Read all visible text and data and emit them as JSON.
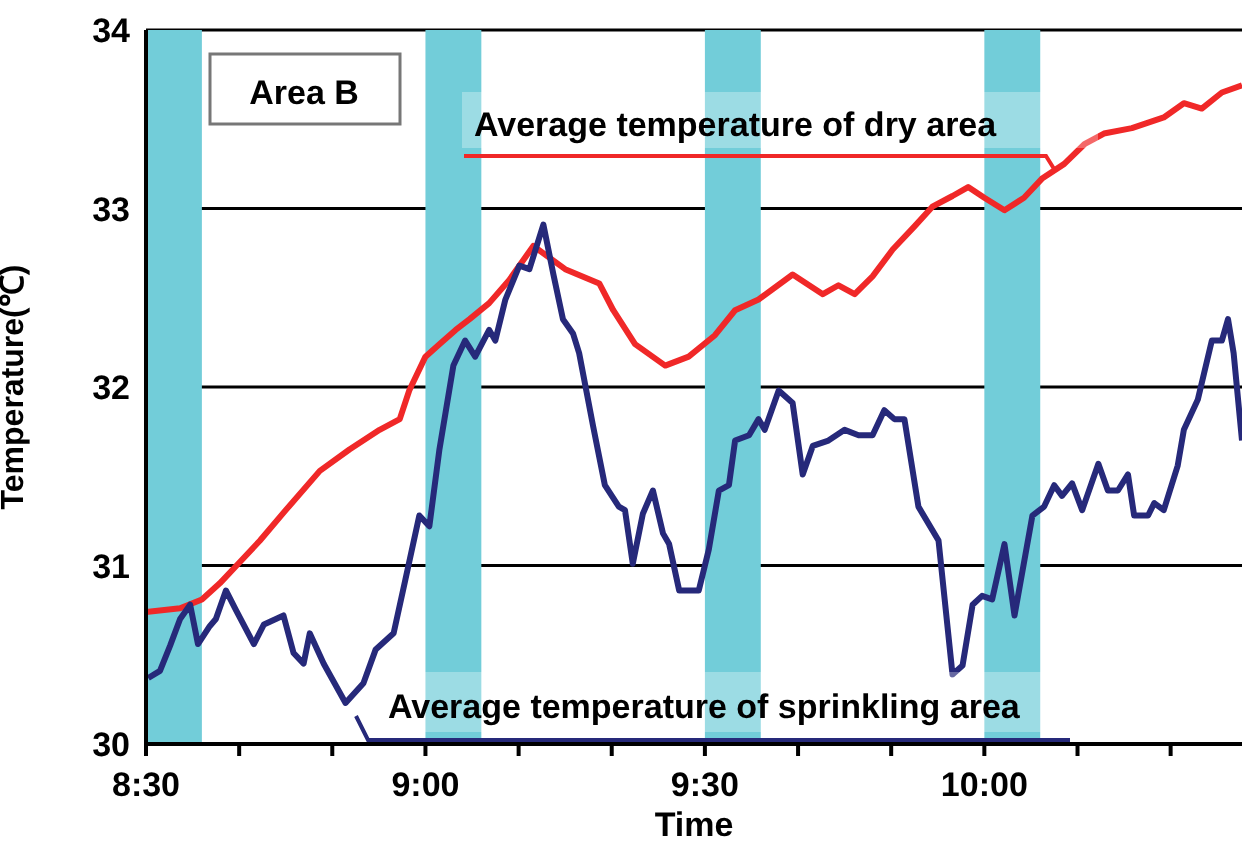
{
  "chart_data": {
    "type": "line",
    "title": "Area B",
    "xlabel": "Time",
    "ylabel": "Temperature(℃)",
    "xlim": [
      8.5,
      10.461
    ],
    "xticks": [
      {
        "value": 8.5,
        "label": "8:30"
      },
      {
        "value": 8.6667,
        "label": null
      },
      {
        "value": 8.8333,
        "label": null
      },
      {
        "value": 9,
        "label": "9:00"
      },
      {
        "value": 9.1667,
        "label": null
      },
      {
        "value": 9.3333,
        "label": null
      },
      {
        "value": 9.5,
        "label": "9:30"
      },
      {
        "value": 9.6667,
        "label": null
      },
      {
        "value": 9.8333,
        "label": null
      },
      {
        "value": 10,
        "label": "10:00"
      },
      {
        "value": 10.1667,
        "label": null
      },
      {
        "value": 10.3333,
        "label": null
      }
    ],
    "ylim": [
      30,
      34
    ],
    "yticks": [
      30,
      31,
      32,
      33,
      34
    ],
    "grid": "y",
    "marker": "none",
    "line_style": "solid",
    "bands": [
      {
        "axis": "x",
        "from": 8.5,
        "to": 8.6,
        "color": "#72cdd9"
      },
      {
        "axis": "x",
        "from": 9.0,
        "to": 9.1,
        "color": "#72cdd9"
      },
      {
        "axis": "x",
        "from": 9.5,
        "to": 9.6,
        "color": "#72cdd9"
      },
      {
        "axis": "x",
        "from": 10.0,
        "to": 10.1,
        "color": "#72cdd9"
      }
    ],
    "series": [
      {
        "name": "Average temperature of dry area",
        "color": "#f02828",
        "x": [
          8.5,
          8.561,
          8.6,
          8.632,
          8.668,
          8.704,
          8.75,
          8.811,
          8.864,
          8.918,
          8.954,
          8.971,
          9.0,
          9.025,
          9.054,
          9.079,
          9.114,
          9.15,
          9.193,
          9.25,
          9.311,
          9.336,
          9.375,
          9.429,
          9.471,
          9.518,
          9.554,
          9.596,
          9.657,
          9.711,
          9.739,
          9.768,
          9.8,
          9.836,
          9.875,
          9.907,
          9.943,
          9.971,
          10.0,
          10.036,
          10.071,
          10.104,
          10.143,
          10.179,
          10.214,
          10.264,
          10.321,
          10.357,
          10.389,
          10.425,
          10.461
        ],
        "values": [
          30.74,
          30.76,
          30.81,
          30.9,
          31.02,
          31.14,
          31.31,
          31.53,
          31.65,
          31.76,
          31.82,
          31.98,
          32.17,
          32.24,
          32.32,
          32.38,
          32.47,
          32.6,
          32.79,
          32.66,
          32.58,
          32.43,
          32.24,
          32.12,
          32.17,
          32.29,
          32.43,
          32.49,
          32.63,
          32.52,
          32.57,
          32.52,
          32.62,
          32.77,
          32.9,
          33.01,
          33.07,
          33.12,
          33.06,
          32.99,
          33.06,
          33.17,
          33.25,
          33.36,
          33.42,
          33.45,
          33.51,
          33.59,
          33.56,
          33.65,
          33.69
        ]
      },
      {
        "name": "Average temperature of sprinkling area",
        "color": "#26297a",
        "x": [
          8.504,
          8.525,
          8.543,
          8.561,
          8.579,
          8.593,
          8.614,
          8.625,
          8.643,
          8.661,
          8.693,
          8.711,
          8.746,
          8.764,
          8.782,
          8.793,
          8.818,
          8.857,
          8.889,
          8.911,
          8.943,
          8.964,
          8.989,
          9.007,
          9.025,
          9.05,
          9.071,
          9.089,
          9.114,
          9.125,
          9.143,
          9.168,
          9.186,
          9.211,
          9.229,
          9.246,
          9.264,
          9.275,
          9.3,
          9.321,
          9.346,
          9.357,
          9.371,
          9.389,
          9.407,
          9.425,
          9.436,
          9.454,
          9.489,
          9.507,
          9.525,
          9.543,
          9.554,
          9.579,
          9.596,
          9.607,
          9.632,
          9.657,
          9.675,
          9.693,
          9.721,
          9.75,
          9.775,
          9.8,
          9.821,
          9.839,
          9.857,
          9.882,
          9.918,
          9.943,
          9.961,
          9.979,
          9.996,
          10.014,
          10.036,
          10.054,
          10.086,
          10.107,
          10.125,
          10.139,
          10.157,
          10.175,
          10.204,
          10.221,
          10.239,
          10.257,
          10.268,
          10.293,
          10.304,
          10.321,
          10.346,
          10.357,
          10.382,
          10.407,
          10.425,
          10.436,
          10.446,
          10.461
        ],
        "values": [
          30.37,
          30.41,
          30.55,
          30.7,
          30.78,
          30.56,
          30.66,
          30.7,
          30.86,
          30.75,
          30.56,
          30.67,
          30.72,
          30.51,
          30.45,
          30.62,
          30.45,
          30.23,
          30.34,
          30.53,
          30.62,
          30.92,
          31.28,
          31.22,
          31.65,
          32.12,
          32.26,
          32.17,
          32.32,
          32.26,
          32.49,
          32.68,
          32.66,
          32.91,
          32.63,
          32.38,
          32.3,
          32.19,
          31.78,
          31.45,
          31.33,
          31.31,
          31.01,
          31.29,
          31.42,
          31.18,
          31.12,
          30.86,
          30.86,
          31.09,
          31.42,
          31.45,
          31.7,
          31.73,
          31.82,
          31.76,
          31.98,
          31.91,
          31.51,
          31.67,
          31.7,
          31.76,
          31.73,
          31.73,
          31.87,
          31.82,
          31.82,
          31.33,
          31.14,
          30.39,
          30.44,
          30.78,
          30.83,
          30.81,
          31.12,
          30.72,
          31.28,
          31.33,
          31.45,
          31.39,
          31.46,
          31.31,
          31.57,
          31.42,
          31.42,
          31.51,
          31.28,
          31.28,
          31.35,
          31.31,
          31.56,
          31.76,
          31.93,
          32.26,
          32.26,
          32.38,
          32.19,
          31.7
        ]
      }
    ]
  }
}
